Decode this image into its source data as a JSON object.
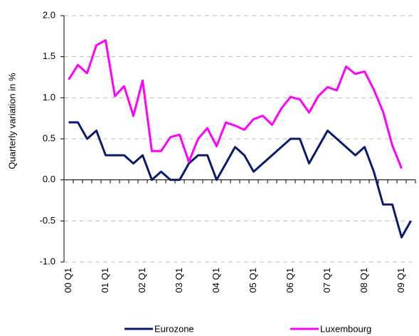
{
  "chart_data": {
    "type": "line",
    "y_label": "Quarterly variation in %",
    "categories": [
      "00 Q1",
      null,
      null,
      null,
      "01 Q1",
      null,
      null,
      null,
      "02 Q1",
      null,
      null,
      null,
      "03 Q1",
      null,
      null,
      null,
      "04 Q1",
      null,
      null,
      null,
      "05 Q1",
      null,
      null,
      null,
      "06 Q1",
      null,
      null,
      null,
      "07 Q1",
      null,
      null,
      null,
      "08 Q1",
      null,
      null,
      null,
      "09 Q1",
      null
    ],
    "series": [
      {
        "name": "Eurozone",
        "color": "#0a1a6e",
        "values": [
          0.7,
          0.7,
          0.5,
          0.6,
          0.3,
          0.3,
          0.3,
          0.2,
          0.3,
          0.0,
          0.1,
          0.0,
          0.0,
          0.2,
          0.3,
          0.3,
          0.0,
          0.2,
          0.4,
          0.3,
          0.1,
          0.2,
          0.3,
          0.4,
          0.5,
          0.5,
          0.2,
          0.4,
          0.6,
          0.5,
          0.4,
          0.3,
          0.4,
          0.1,
          -0.3,
          -0.3,
          -0.7,
          -0.5
        ]
      },
      {
        "name": "Luxembourg",
        "color": "#ff00ff",
        "values": [
          1.22,
          1.4,
          1.3,
          1.64,
          1.7,
          1.02,
          1.14,
          0.78,
          1.21,
          0.35,
          0.35,
          0.52,
          0.55,
          0.22,
          0.5,
          0.63,
          0.41,
          0.7,
          0.66,
          0.61,
          0.74,
          0.78,
          0.67,
          0.87,
          1.01,
          0.98,
          0.82,
          1.02,
          1.13,
          1.09,
          1.38,
          1.29,
          1.32,
          1.1,
          0.83,
          0.42,
          0.14,
          null
        ]
      }
    ],
    "ylim": [
      -1.0,
      2.0
    ],
    "yticks": [
      {
        "value": -1.0,
        "label": "-1.0"
      },
      {
        "value": -0.5,
        "label": "-0.5"
      },
      {
        "value": 0.0,
        "label": "0.0"
      },
      {
        "value": 0.5,
        "label": "0.5"
      },
      {
        "value": 1.0,
        "label": "1.0"
      },
      {
        "value": 1.5,
        "label": "1.5"
      },
      {
        "value": 2.0,
        "label": "2.0"
      }
    ],
    "grid": true
  }
}
